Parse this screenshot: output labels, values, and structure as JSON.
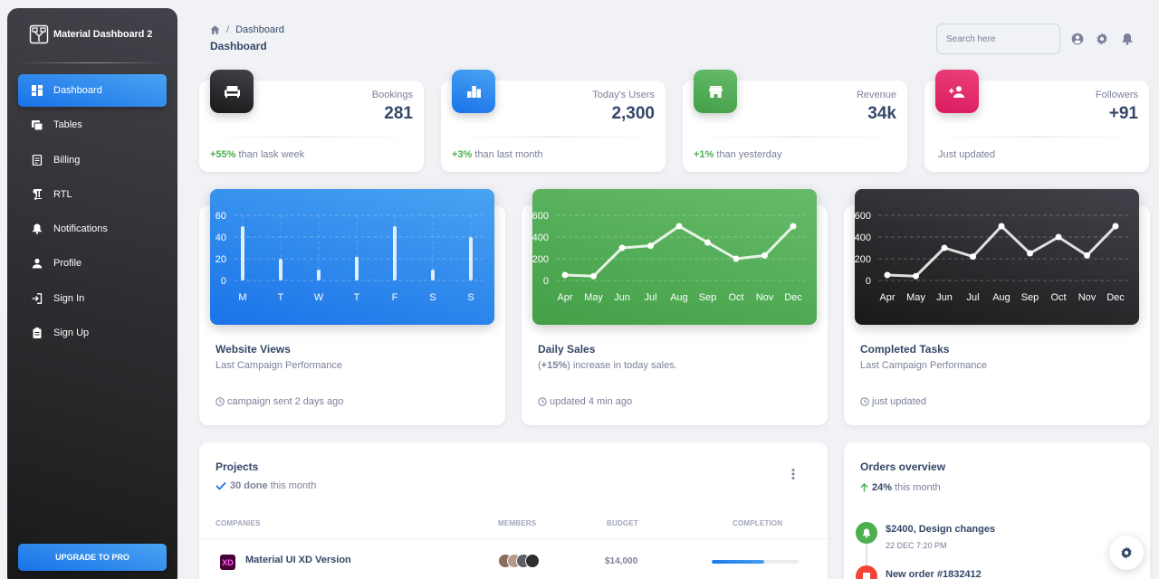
{
  "sidebar": {
    "brand": "Material Dashboard 2",
    "items": [
      {
        "label": "Dashboard",
        "icon": "dashboard-icon",
        "active": true
      },
      {
        "label": "Tables",
        "icon": "table-icon"
      },
      {
        "label": "Billing",
        "icon": "receipt-icon"
      },
      {
        "label": "RTL",
        "icon": "rtl-icon"
      },
      {
        "label": "Notifications",
        "icon": "bell-icon"
      },
      {
        "label": "Profile",
        "icon": "person-icon"
      },
      {
        "label": "Sign In",
        "icon": "login-icon"
      },
      {
        "label": "Sign Up",
        "icon": "assignment-icon"
      }
    ],
    "upgrade_label": "UPGRADE TO PRO"
  },
  "header": {
    "breadcrumb_current": "Dashboard",
    "title": "Dashboard",
    "search_placeholder": "Search here"
  },
  "stats": [
    {
      "label": "Bookings",
      "value": "281",
      "delta": "+55%",
      "footer": " than lask week",
      "icon": "weekend-icon",
      "color": "#333333"
    },
    {
      "label": "Today's Users",
      "value": "2,300",
      "delta": "+3%",
      "footer": " than last month",
      "icon": "leaderboard-icon",
      "color": "#1a73e8"
    },
    {
      "label": "Revenue",
      "value": "34k",
      "delta": "+1%",
      "footer": " than yesterday",
      "icon": "store-icon",
      "color": "#4caf50"
    },
    {
      "label": "Followers",
      "value": "+91",
      "delta": "",
      "footer": "Just updated",
      "icon": "person-add-icon",
      "color": "#e91e63"
    }
  ],
  "charts": [
    {
      "title": "Website Views",
      "subtitle": "Last Campaign Performance",
      "footer": "campaign sent 2 days ago"
    },
    {
      "title": "Daily Sales",
      "subtitle_prefix": "(",
      "subtitle_bold": "+15%",
      "subtitle_suffix": ") increase in today sales.",
      "footer": "updated 4 min ago"
    },
    {
      "title": "Completed Tasks",
      "subtitle": "Last Campaign Performance",
      "footer": "just updated"
    }
  ],
  "chart_data": [
    {
      "type": "bar",
      "categories": [
        "M",
        "T",
        "W",
        "T",
        "F",
        "S",
        "S"
      ],
      "values": [
        50,
        20,
        10,
        22,
        50,
        10,
        40
      ],
      "yticks": [
        "0",
        "20",
        "40",
        "60"
      ],
      "ylim": [
        0,
        60
      ],
      "background": "#1a73e8"
    },
    {
      "type": "line",
      "categories": [
        "Apr",
        "May",
        "Jun",
        "Jul",
        "Aug",
        "Sep",
        "Oct",
        "Nov",
        "Dec"
      ],
      "values": [
        50,
        40,
        300,
        320,
        500,
        350,
        200,
        230,
        500
      ],
      "yticks": [
        "0",
        "200",
        "400",
        "600"
      ],
      "ylim": [
        0,
        600
      ],
      "background": "#4caf50"
    },
    {
      "type": "line",
      "categories": [
        "Apr",
        "May",
        "Jun",
        "Jul",
        "Aug",
        "Sep",
        "Oct",
        "Nov",
        "Dec"
      ],
      "values": [
        50,
        40,
        300,
        220,
        500,
        250,
        400,
        230,
        500
      ],
      "yticks": [
        "0",
        "200",
        "400",
        "600"
      ],
      "ylim": [
        0,
        600
      ],
      "background": "#262626"
    }
  ],
  "projects": {
    "title": "Projects",
    "done_count": "30 done",
    "done_suffix": "this month",
    "columns": [
      "COMPANIES",
      "MEMBERS",
      "BUDGET",
      "COMPLETION"
    ],
    "rows": [
      {
        "name": "Material UI XD Version",
        "logo": "XD",
        "budget": "$14,000",
        "completion": 60
      }
    ]
  },
  "orders": {
    "title": "Orders overview",
    "growth": "24%",
    "growth_suffix": "this month",
    "items": [
      {
        "title": "$2400, Design changes",
        "date": "22 DEC 7:20 PM",
        "color": "#4caf50",
        "icon": "bell-icon"
      },
      {
        "title": "New order #1832412",
        "date": "",
        "color": "#f44335",
        "icon": "code-icon"
      }
    ]
  }
}
